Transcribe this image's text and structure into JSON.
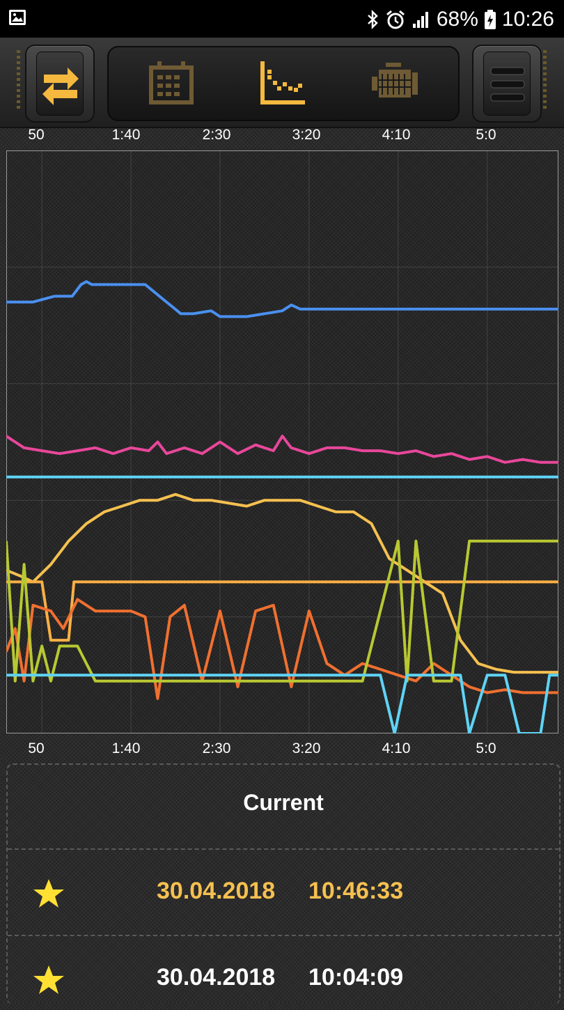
{
  "statusbar": {
    "battery": "68%",
    "time": "10:26",
    "icons": [
      "gallery-icon",
      "bluetooth-icon",
      "alarm-icon",
      "signal-icon",
      "battery-charging-icon"
    ]
  },
  "toolbar": {
    "icons": [
      "swap-arrows-icon",
      "calendar-icon",
      "chart-icon",
      "engine-icon",
      "menu-icon"
    ],
    "active_color": "#f5b940",
    "inactive_color": "#6e5a34"
  },
  "axis": {
    "ticks": [
      "50",
      "1:40",
      "2:30",
      "3:20",
      "4:10",
      "5:0"
    ]
  },
  "chart_data": {
    "type": "line",
    "xlabel": "",
    "ylabel": "",
    "x_ticks": [
      "50",
      "1:40",
      "2:30",
      "3:20",
      "4:10",
      "5:0"
    ],
    "x_unit": "seconds",
    "xlim": [
      30,
      340
    ],
    "ylim": [
      0,
      100
    ],
    "grid": true,
    "legend": "none",
    "series": [
      {
        "color": "#4a90f0",
        "points": [
          [
            30,
            74
          ],
          [
            45,
            74
          ],
          [
            57,
            75
          ],
          [
            67,
            75
          ],
          [
            72,
            77
          ],
          [
            75,
            77.5
          ],
          [
            78,
            77
          ],
          [
            95,
            77
          ],
          [
            108,
            77
          ],
          [
            128,
            72
          ],
          [
            135,
            72
          ],
          [
            145,
            72.5
          ],
          [
            150,
            71.5
          ],
          [
            165,
            71.5
          ],
          [
            175,
            72
          ],
          [
            185,
            72.5
          ],
          [
            190,
            73.5
          ],
          [
            195,
            72.8
          ],
          [
            340,
            72.8
          ]
        ]
      },
      {
        "color": "#e8479a",
        "points": [
          [
            30,
            51
          ],
          [
            40,
            49
          ],
          [
            50,
            48.5
          ],
          [
            60,
            48
          ],
          [
            70,
            48.5
          ],
          [
            80,
            49
          ],
          [
            90,
            48
          ],
          [
            100,
            49
          ],
          [
            110,
            48.5
          ],
          [
            115,
            50
          ],
          [
            120,
            48
          ],
          [
            130,
            49
          ],
          [
            140,
            48
          ],
          [
            150,
            50
          ],
          [
            160,
            48
          ],
          [
            170,
            49.5
          ],
          [
            180,
            48.5
          ],
          [
            185,
            51
          ],
          [
            190,
            49
          ],
          [
            200,
            48
          ],
          [
            210,
            49
          ],
          [
            220,
            49
          ],
          [
            230,
            48.5
          ],
          [
            240,
            48.5
          ],
          [
            250,
            48
          ],
          [
            260,
            48.5
          ],
          [
            270,
            47.5
          ],
          [
            280,
            48
          ],
          [
            290,
            47
          ],
          [
            300,
            47.5
          ],
          [
            310,
            46.5
          ],
          [
            320,
            47
          ],
          [
            330,
            46.5
          ],
          [
            340,
            46.5
          ]
        ]
      },
      {
        "color": "#5fd3f5",
        "points": [
          [
            30,
            44
          ],
          [
            340,
            44
          ]
        ]
      },
      {
        "color": "#f5c050",
        "points": [
          [
            30,
            28
          ],
          [
            38,
            27
          ],
          [
            45,
            26
          ],
          [
            55,
            29
          ],
          [
            65,
            33
          ],
          [
            75,
            36
          ],
          [
            85,
            38
          ],
          [
            95,
            39
          ],
          [
            105,
            40
          ],
          [
            115,
            40
          ],
          [
            125,
            41
          ],
          [
            135,
            40
          ],
          [
            145,
            40
          ],
          [
            155,
            39.5
          ],
          [
            165,
            39
          ],
          [
            175,
            40
          ],
          [
            185,
            40
          ],
          [
            195,
            40
          ],
          [
            205,
            39
          ],
          [
            215,
            38
          ],
          [
            225,
            38
          ],
          [
            235,
            36
          ],
          [
            245,
            30
          ],
          [
            255,
            28
          ],
          [
            265,
            26
          ],
          [
            275,
            24
          ],
          [
            285,
            16
          ],
          [
            295,
            12
          ],
          [
            305,
            11
          ],
          [
            315,
            10.5
          ],
          [
            325,
            10.5
          ],
          [
            340,
            10.5
          ]
        ]
      },
      {
        "color": "#fab045",
        "points": [
          [
            30,
            26
          ],
          [
            50,
            26
          ],
          [
            55,
            16
          ],
          [
            65,
            16
          ],
          [
            68,
            26
          ],
          [
            110,
            26
          ],
          [
            118,
            26
          ],
          [
            140,
            26
          ],
          [
            150,
            26
          ],
          [
            170,
            26
          ],
          [
            185,
            26
          ],
          [
            200,
            26
          ],
          [
            220,
            26
          ],
          [
            240,
            26
          ],
          [
            260,
            26
          ],
          [
            340,
            26
          ]
        ]
      },
      {
        "color": "#f07030",
        "points": [
          [
            30,
            14
          ],
          [
            35,
            18
          ],
          [
            40,
            9
          ],
          [
            45,
            22
          ],
          [
            55,
            21
          ],
          [
            62,
            18
          ],
          [
            70,
            23
          ],
          [
            80,
            21
          ],
          [
            100,
            21
          ],
          [
            108,
            20
          ],
          [
            115,
            6
          ],
          [
            122,
            20
          ],
          [
            130,
            22
          ],
          [
            140,
            9
          ],
          [
            150,
            21
          ],
          [
            160,
            8
          ],
          [
            170,
            21
          ],
          [
            180,
            22
          ],
          [
            190,
            8
          ],
          [
            200,
            21
          ],
          [
            210,
            12
          ],
          [
            220,
            10
          ],
          [
            230,
            12
          ],
          [
            240,
            11
          ],
          [
            250,
            10
          ],
          [
            260,
            9
          ],
          [
            270,
            12
          ],
          [
            280,
            10
          ],
          [
            290,
            8
          ],
          [
            300,
            7
          ],
          [
            310,
            7.5
          ],
          [
            320,
            7
          ],
          [
            330,
            7
          ],
          [
            340,
            7
          ]
        ]
      },
      {
        "color": "#b8c832",
        "points": [
          [
            30,
            33
          ],
          [
            35,
            9
          ],
          [
            40,
            29
          ],
          [
            45,
            9
          ],
          [
            50,
            15
          ],
          [
            55,
            9
          ],
          [
            60,
            15
          ],
          [
            70,
            15
          ],
          [
            80,
            9
          ],
          [
            100,
            9
          ],
          [
            130,
            9
          ],
          [
            150,
            9
          ],
          [
            170,
            9
          ],
          [
            190,
            9
          ],
          [
            210,
            9
          ],
          [
            230,
            9
          ],
          [
            250,
            33
          ],
          [
            255,
            9
          ],
          [
            260,
            33
          ],
          [
            270,
            9
          ],
          [
            280,
            9
          ],
          [
            290,
            33
          ],
          [
            296,
            33
          ],
          [
            340,
            33
          ]
        ]
      },
      {
        "color": "#5fd3f5",
        "points": [
          [
            30,
            10
          ],
          [
            240,
            10
          ],
          [
            248,
            0
          ],
          [
            255,
            10
          ],
          [
            285,
            10
          ],
          [
            290,
            0
          ],
          [
            300,
            10
          ],
          [
            310,
            10
          ],
          [
            318,
            0
          ],
          [
            330,
            0
          ],
          [
            335,
            10
          ],
          [
            340,
            10
          ]
        ]
      }
    ]
  },
  "card": {
    "title": "Current",
    "entries": [
      {
        "date": "30.04.2018",
        "time": "10:46:33",
        "color": "#f5c050"
      },
      {
        "date": "30.04.2018",
        "time": "10:04:09",
        "color": "#ffffff"
      }
    ],
    "star_color": "#ffe033"
  }
}
